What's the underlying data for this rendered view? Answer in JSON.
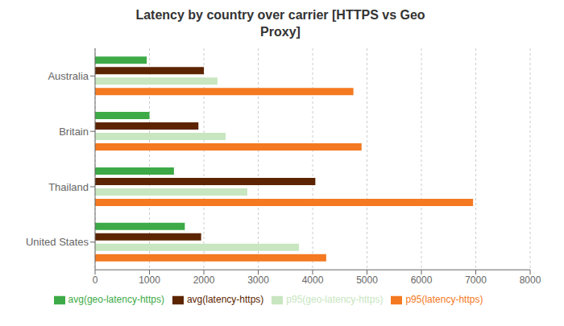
{
  "chart_data": {
    "type": "bar",
    "title": "Latency by country over carrier [HTTPS vs Geo\nProxy]",
    "orientation": "horizontal",
    "categories": [
      "Australia",
      "Britain",
      "Thailand",
      "United States"
    ],
    "series": [
      {
        "name": "avg(geo-latency-https)",
        "color": "#3DAA47",
        "values": [
          950,
          1000,
          1450,
          1650
        ]
      },
      {
        "name": "avg(latency-https)",
        "color": "#5C2400",
        "values": [
          2000,
          1900,
          4050,
          1950
        ]
      },
      {
        "name": "p95(geo-latency-https)",
        "color": "#C8E6C0",
        "values": [
          2250,
          2400,
          2800,
          3750
        ]
      },
      {
        "name": "p95(latency-https)",
        "color": "#F47920",
        "values": [
          4750,
          4900,
          6950,
          4250
        ]
      }
    ],
    "xlim": [
      0,
      8000
    ],
    "xticks": [
      0,
      1000,
      2000,
      3000,
      4000,
      5000,
      6000,
      7000,
      8000
    ],
    "grid": true,
    "legend": "bottom"
  }
}
